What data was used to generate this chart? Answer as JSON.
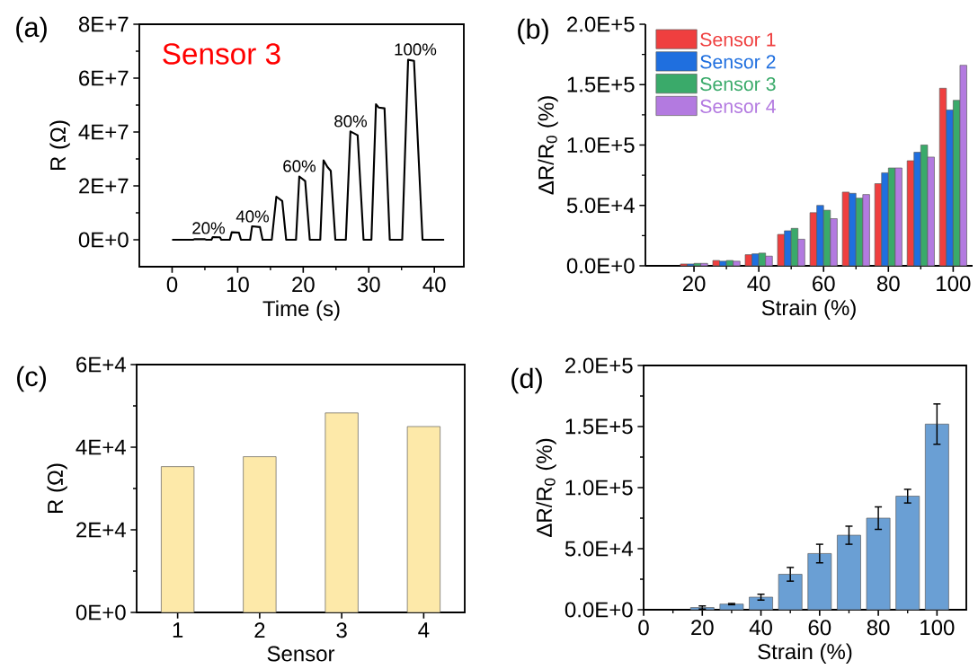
{
  "chart_data": [
    {
      "type": "line",
      "title": "(a)",
      "xlabel": "Time (s)",
      "ylabel": "R (Ω)",
      "color": "#000000",
      "x": [
        0,
        3.2,
        3.4,
        5.0,
        5.2,
        6.0,
        6.2,
        7.3,
        7.5,
        8.8,
        9.1,
        10.2,
        10.5,
        11.9,
        12.2,
        13.4,
        13.8,
        15.2,
        15.9,
        16.8,
        17.4,
        18.9,
        19.4,
        20.3,
        21.0,
        22.6,
        23.1,
        23.7,
        24.2,
        24.9,
        26.5,
        27.2,
        28.3,
        29.2,
        30.4,
        31.1,
        31.5,
        32.4,
        33.2,
        35.1,
        36.0,
        36.9,
        38.2,
        41.5
      ],
      "values": [
        0,
        0,
        200000,
        200000,
        0,
        0,
        1000000,
        900000,
        0,
        0,
        2800000,
        2600000,
        0,
        0,
        5000000,
        4700000,
        0,
        0,
        16000000,
        14400000,
        0,
        0,
        23500000,
        21800000,
        0,
        0,
        29500000,
        27000000,
        25600000,
        0,
        0,
        40200000,
        38800000,
        0,
        0,
        50300000,
        49100000,
        48800000,
        0,
        0,
        66800000,
        66400000,
        0,
        0
      ],
      "xlim": [
        -5,
        44.5
      ],
      "ylim": [
        -10000000,
        80000000
      ],
      "xticks": [
        0,
        10,
        20,
        30,
        40
      ],
      "yticks": [
        {
          "value": 0,
          "label": "0E+0"
        },
        {
          "value": 20000000,
          "label": "2E+7"
        },
        {
          "value": 40000000,
          "label": "4E+7"
        },
        {
          "value": 60000000,
          "label": "6E+7"
        },
        {
          "value": 80000000,
          "label": "8E+7"
        }
      ],
      "annotations": [
        "Sensor 3",
        "20%",
        "40%",
        "60%",
        "80%",
        "100%"
      ]
    },
    {
      "type": "bar",
      "title": "(b)",
      "xlabel": "Strain (%)",
      "ylabel": "ΔR/R$_{0}$ (%)",
      "x": [
        20,
        30,
        40,
        50,
        60,
        70,
        80,
        90,
        100
      ],
      "series": [
        {
          "name": "Sensor 1",
          "color": "#ef3f3f",
          "values": [
            1500,
            4400,
            9200,
            26000,
            44000,
            61000,
            68000,
            87000,
            147000
          ]
        },
        {
          "name": "Sensor 2",
          "color": "#1f6fdf",
          "values": [
            1500,
            3800,
            9900,
            29000,
            50000,
            60000,
            77000,
            94000,
            129000
          ]
        },
        {
          "name": "Sensor 3",
          "color": "#3aaa6a",
          "values": [
            2000,
            4400,
            10500,
            31000,
            46000,
            56000,
            81000,
            100000,
            137000
          ]
        },
        {
          "name": "Sensor 4",
          "color": "#b37ae0",
          "values": [
            2000,
            3800,
            8000,
            22000,
            39000,
            59000,
            81000,
            90000,
            166000
          ]
        }
      ],
      "xlim": [
        5,
        106
      ],
      "ylim": [
        0,
        200000
      ],
      "xticks": [
        20,
        40,
        60,
        80,
        100
      ],
      "yticks": [
        {
          "value": 0,
          "label": "0.0E+0"
        },
        {
          "value": 50000,
          "label": "5.0E+4"
        },
        {
          "value": 100000,
          "label": "1.0E+5"
        },
        {
          "value": 150000,
          "label": "1.5E+5"
        },
        {
          "value": 200000,
          "label": "2.0E+5"
        }
      ],
      "legend": "top left"
    },
    {
      "type": "bar",
      "title": "(c)",
      "xlabel": "Sensor",
      "ylabel": "R (Ω)",
      "categories": [
        "1",
        "2",
        "3",
        "4"
      ],
      "color": "#fde9a9",
      "values": [
        35300,
        37700,
        48300,
        45000
      ],
      "ylim": [
        0,
        60000
      ],
      "yticks": [
        {
          "value": 0,
          "label": "0E+0"
        },
        {
          "value": 20000,
          "label": "2E+4"
        },
        {
          "value": 40000,
          "label": "4E+4"
        },
        {
          "value": 60000,
          "label": "6E+4"
        }
      ]
    },
    {
      "type": "bar",
      "title": "(d)",
      "xlabel": "Strain (%)",
      "ylabel": "ΔR/R$_{0}$ (%)",
      "x": [
        20,
        30,
        40,
        50,
        60,
        70,
        80,
        90,
        100
      ],
      "color": "#6a9fd4",
      "values": [
        1800,
        4600,
        10300,
        29000,
        46000,
        61000,
        75000,
        93000,
        152000
      ],
      "errors": [
        1300,
        500,
        2400,
        5600,
        7600,
        7400,
        9200,
        5600,
        16500
      ],
      "xlim": [
        0,
        110
      ],
      "ylim": [
        0,
        200000
      ],
      "xticks": [
        0,
        20,
        40,
        60,
        80,
        100
      ],
      "yticks": [
        {
          "value": 0,
          "label": "0.0E+0"
        },
        {
          "value": 50000,
          "label": "5.0E+4"
        },
        {
          "value": 100000,
          "label": "1.0E+5"
        },
        {
          "value": 150000,
          "label": "1.5E+5"
        },
        {
          "value": 200000,
          "label": "2.0E+5"
        }
      ]
    }
  ]
}
